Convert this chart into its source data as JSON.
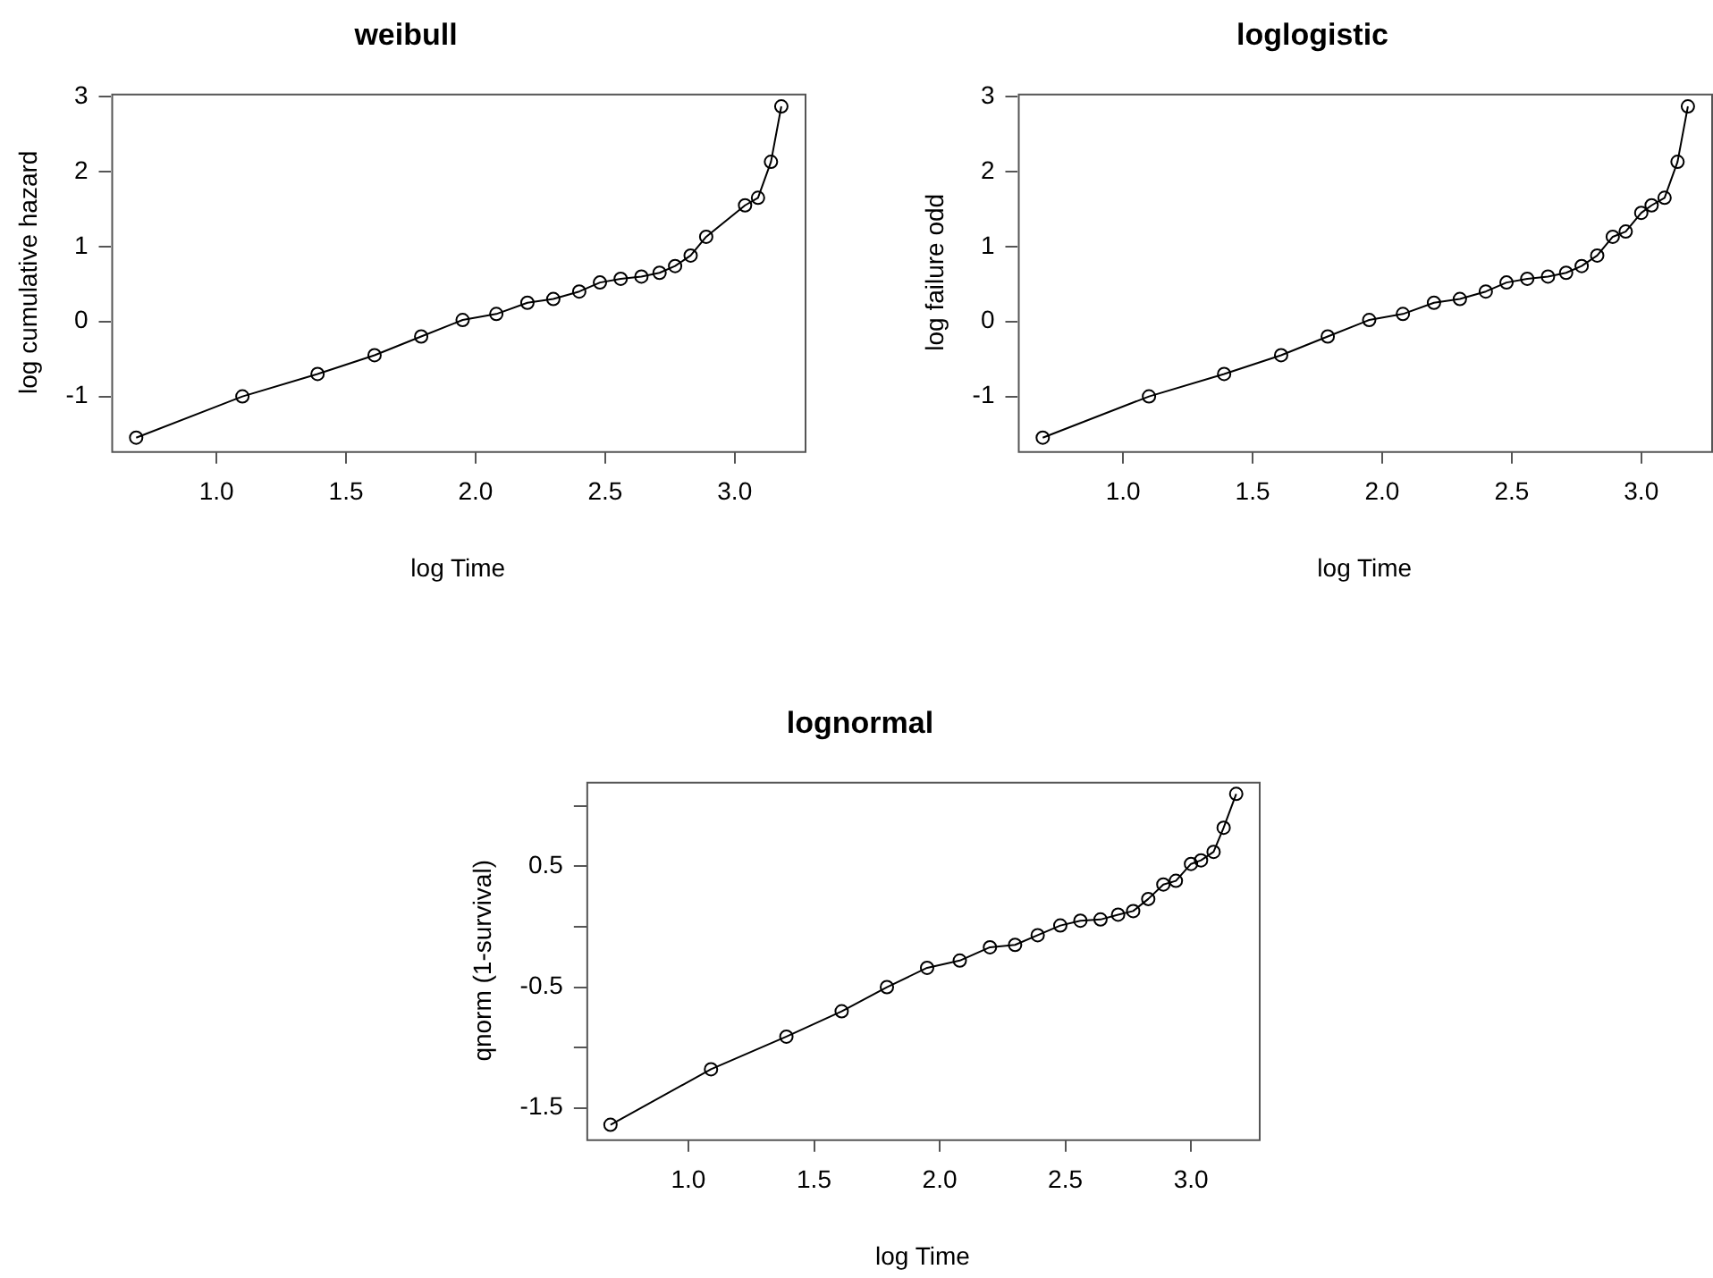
{
  "chart_data": [
    {
      "type": "line",
      "title": "weibull",
      "xlabel": "log Time",
      "ylabel": "log cumulative hazard",
      "marker": "circle",
      "grid": false,
      "xlim": [
        0.594,
        3.27
      ],
      "ylim": [
        -1.73,
        3.04
      ],
      "xticks": [
        {
          "value": 1,
          "label": "1.0"
        },
        {
          "value": 1.5,
          "label": "1.5"
        },
        {
          "value": 2,
          "label": "2.0"
        },
        {
          "value": 2.5,
          "label": "2.5"
        },
        {
          "value": 3,
          "label": "3.0"
        }
      ],
      "yticks": [
        -1,
        0,
        1,
        2,
        3
      ],
      "series": [
        {
          "color": "#000000",
          "x": [
            0.69,
            1.1,
            1.39,
            1.61,
            1.79,
            1.95,
            2.08,
            2.2,
            2.3,
            2.4,
            2.48,
            2.56,
            2.64,
            2.71,
            2.77,
            2.83,
            2.89,
            3.04,
            3.09,
            3.14,
            3.18
          ],
          "values": [
            -1.55,
            -1.0,
            -0.7,
            -0.45,
            -0.2,
            0.02,
            0.1,
            0.25,
            0.3,
            0.4,
            0.52,
            0.57,
            0.6,
            0.65,
            0.74,
            0.88,
            1.13,
            1.55,
            1.65,
            2.13,
            2.87
          ]
        }
      ]
    },
    {
      "type": "line",
      "title": "loglogistic",
      "xlabel": "log Time",
      "ylabel": "log failure odd",
      "marker": "circle",
      "grid": false,
      "xlim": [
        0.594,
        3.27
      ],
      "ylim": [
        -1.73,
        3.04
      ],
      "xticks": [
        {
          "value": 1,
          "label": "1.0"
        },
        {
          "value": 1.5,
          "label": "1.5"
        },
        {
          "value": 2,
          "label": "2.0"
        },
        {
          "value": 2.5,
          "label": "2.5"
        },
        {
          "value": 3,
          "label": "3.0"
        }
      ],
      "yticks": [
        -1,
        0,
        1,
        2,
        3
      ],
      "series": [
        {
          "color": "#000000",
          "x": [
            0.69,
            1.1,
            1.39,
            1.61,
            1.79,
            1.95,
            2.08,
            2.2,
            2.3,
            2.4,
            2.48,
            2.56,
            2.64,
            2.71,
            2.77,
            2.83,
            2.89,
            2.94,
            3.0,
            3.04,
            3.09,
            3.14,
            3.18
          ],
          "values": [
            -1.55,
            -1.0,
            -0.7,
            -0.45,
            -0.2,
            0.02,
            0.1,
            0.25,
            0.3,
            0.4,
            0.52,
            0.57,
            0.6,
            0.65,
            0.74,
            0.88,
            1.13,
            1.2,
            1.45,
            1.55,
            1.65,
            2.13,
            2.87
          ]
        }
      ]
    },
    {
      "type": "line",
      "title": "lognormal",
      "xlabel": "log Time",
      "ylabel": "qnorm (1-survival)",
      "marker": "circle",
      "grid": false,
      "xlim": [
        0.594,
        3.27
      ],
      "ylim": [
        -1.76,
        1.2
      ],
      "xticks": [
        {
          "value": 1,
          "label": "1.0"
        },
        {
          "value": 1.5,
          "label": "1.5"
        },
        {
          "value": 2,
          "label": "2.0"
        },
        {
          "value": 2.5,
          "label": "2.5"
        },
        {
          "value": 3,
          "label": "3.0"
        }
      ],
      "yticks": [
        {
          "value": -1.5,
          "label": "-1.5"
        },
        {
          "value": -1,
          "label": null
        },
        {
          "value": -0.5,
          "label": "-0.5"
        },
        {
          "value": 0,
          "label": null
        },
        {
          "value": 0.5,
          "label": "0.5"
        },
        {
          "value": 1,
          "label": null
        }
      ],
      "series": [
        {
          "color": "#000000",
          "x": [
            0.69,
            1.09,
            1.39,
            1.61,
            1.79,
            1.95,
            2.08,
            2.2,
            2.3,
            2.39,
            2.48,
            2.56,
            2.64,
            2.71,
            2.77,
            2.83,
            2.89,
            2.94,
            3.0,
            3.04,
            3.09,
            3.13,
            3.18
          ],
          "values": [
            -1.64,
            -1.18,
            -0.91,
            -0.7,
            -0.5,
            -0.34,
            -0.28,
            -0.17,
            -0.15,
            -0.07,
            0.01,
            0.05,
            0.06,
            0.1,
            0.13,
            0.23,
            0.35,
            0.38,
            0.52,
            0.55,
            0.62,
            0.82,
            1.1
          ]
        }
      ]
    }
  ]
}
